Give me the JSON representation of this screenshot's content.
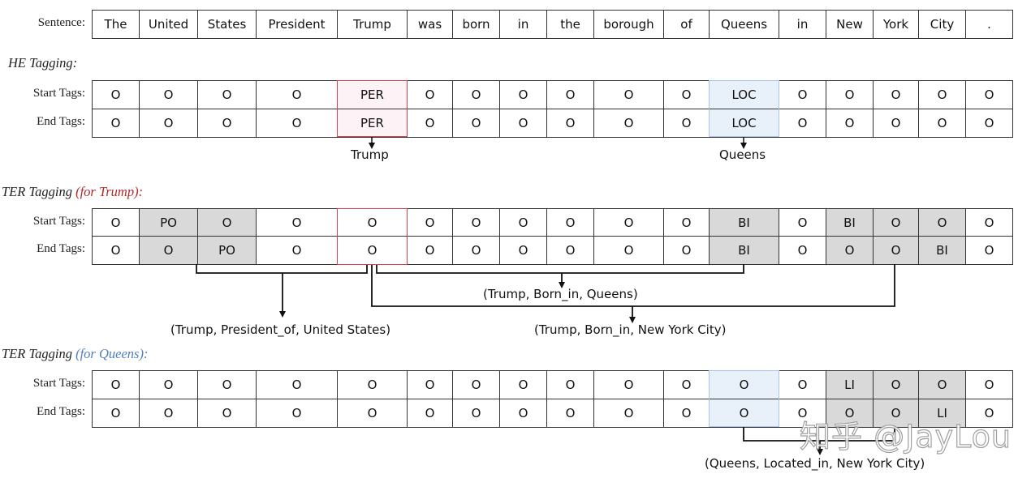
{
  "sentence_label": "Sentence:",
  "tokens": [
    "The",
    "United",
    "States",
    "President",
    "Trump",
    "was",
    "born",
    "in",
    "the",
    "borough",
    "of",
    "Queens",
    "in",
    "New",
    "York",
    "City",
    "."
  ],
  "row_labels": {
    "start": "Start Tags:",
    "end": "End Tags:"
  },
  "he": {
    "title": "HE Tagging:",
    "start": [
      "O",
      "O",
      "O",
      "O",
      "PER",
      "O",
      "O",
      "O",
      "O",
      "O",
      "O",
      "LOC",
      "O",
      "O",
      "O",
      "O",
      "O"
    ],
    "end": [
      "O",
      "O",
      "O",
      "O",
      "PER",
      "O",
      "O",
      "O",
      "O",
      "O",
      "O",
      "LOC",
      "O",
      "O",
      "O",
      "O",
      "O"
    ],
    "entity_trump": "Trump",
    "entity_queens": "Queens"
  },
  "ter_trump": {
    "title_prefix": "TER Tagging",
    "title_suffix": "(for Trump):",
    "start": [
      "O",
      "PO",
      "O",
      "O",
      "O",
      "O",
      "O",
      "O",
      "O",
      "O",
      "O",
      "BI",
      "O",
      "BI",
      "O",
      "O",
      "O"
    ],
    "end": [
      "O",
      "O",
      "PO",
      "O",
      "O",
      "O",
      "O",
      "O",
      "O",
      "O",
      "O",
      "BI",
      "O",
      "O",
      "O",
      "BI",
      "O"
    ],
    "start_gray": [
      1,
      2,
      11,
      13,
      14,
      15
    ],
    "end_gray": [
      1,
      2,
      11,
      13,
      14,
      15
    ],
    "triple_born_queens": "(Trump, Born_in, Queens)",
    "triple_president": "(Trump, President_of, United States)",
    "triple_born_nyc": "(Trump, Born_in, New York City)"
  },
  "ter_queens": {
    "title_prefix": "TER Tagging",
    "title_suffix": "(for Queens):",
    "start": [
      "O",
      "O",
      "O",
      "O",
      "O",
      "O",
      "O",
      "O",
      "O",
      "O",
      "O",
      "O",
      "O",
      "LI",
      "O",
      "O",
      "O"
    ],
    "end": [
      "O",
      "O",
      "O",
      "O",
      "O",
      "O",
      "O",
      "O",
      "O",
      "O",
      "O",
      "O",
      "O",
      "O",
      "O",
      "LI",
      "O"
    ],
    "start_gray": [
      13,
      14,
      15
    ],
    "end_gray": [
      13,
      14,
      15
    ],
    "triple_located": "(Queens, Located_in, New York City)"
  },
  "watermark": "知乎 @JayLou",
  "colors": {
    "gray": "#d9d9d9",
    "red": "#d2424c",
    "blue_fill": "#e8f0fa",
    "pink_fill": "#fdf2f6"
  }
}
